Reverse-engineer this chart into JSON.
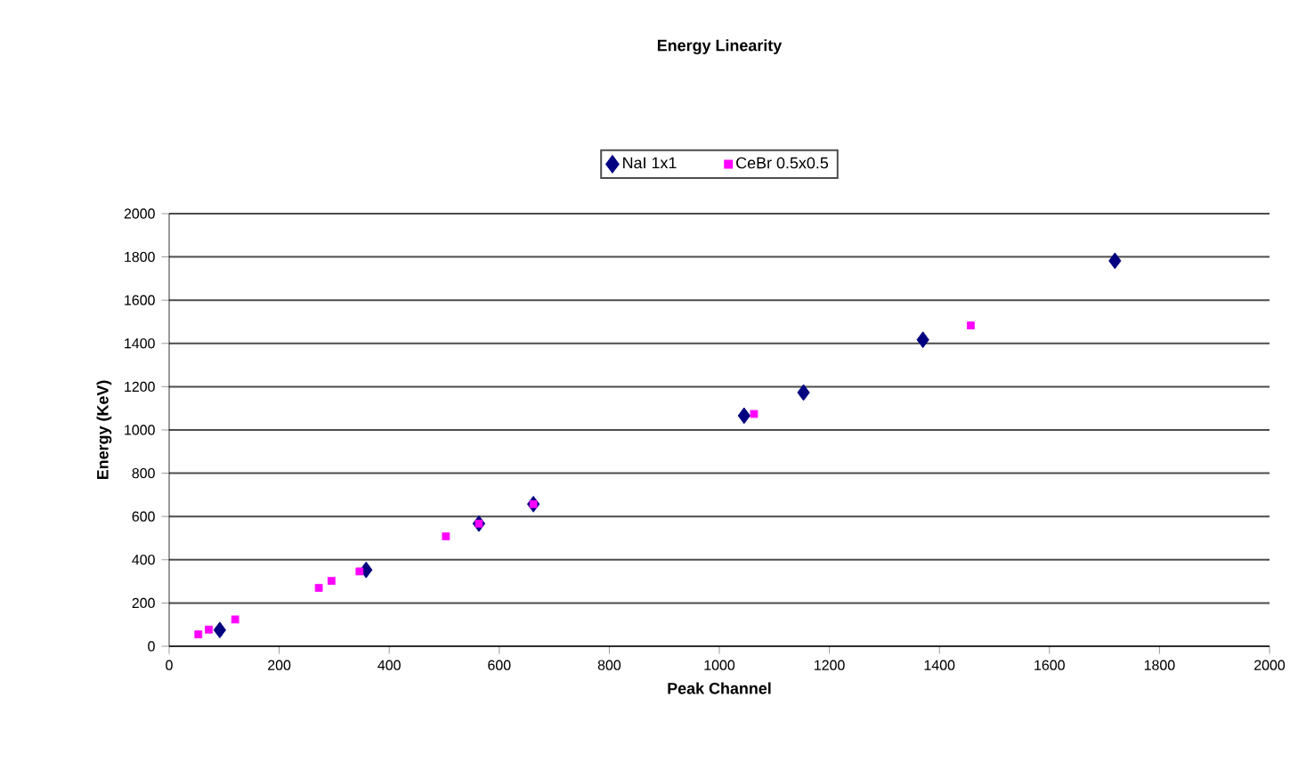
{
  "chart_data": {
    "type": "scatter",
    "title": "Energy Linearity",
    "xlabel": "Peak Channel",
    "ylabel": "Energy (KeV)",
    "xlim": [
      0,
      2000
    ],
    "xticks": [
      0,
      200,
      400,
      600,
      800,
      1000,
      1200,
      1400,
      1600,
      1800,
      2000
    ],
    "ylim": [
      0,
      2000
    ],
    "yticks": [
      0,
      200,
      400,
      600,
      800,
      1000,
      1200,
      1400,
      1600,
      1800,
      2000
    ],
    "grid": "y",
    "legend": "top",
    "series": [
      {
        "name": "NaI 1x1",
        "color": "#000080",
        "marker": "diamond",
        "x": [
          92,
          358,
          563,
          662,
          1045,
          1153,
          1370,
          1719
        ],
        "values": [
          75,
          353,
          567,
          657,
          1066,
          1173,
          1417,
          1782
        ]
      },
      {
        "name": "CeBr 0.5x0.5",
        "color": "#ff00ff",
        "marker": "square",
        "x": [
          53,
          72,
          120,
          272,
          295,
          346,
          503,
          563,
          662,
          1063,
          1457
        ],
        "values": [
          55,
          77,
          124,
          270,
          302,
          346,
          508,
          567,
          657,
          1074,
          1483
        ]
      }
    ]
  }
}
